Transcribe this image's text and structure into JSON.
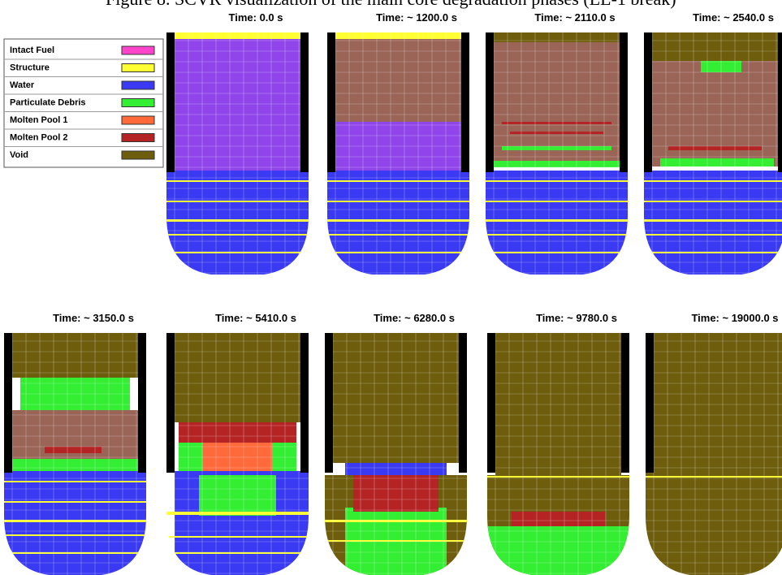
{
  "figure": {
    "caption": "Figure 8. SCVR visualization of the main core degradation phases (LL-1 break)",
    "legend": [
      {
        "label": "Intact Fuel",
        "color": "#ff44cc"
      },
      {
        "label": "Structure",
        "color": "#ffff33"
      },
      {
        "label": "Water",
        "color": "#3a3af2"
      },
      {
        "label": "Particulate Debris",
        "color": "#33ee33"
      },
      {
        "label": "Molten Pool 1",
        "color": "#ff6a3a"
      },
      {
        "label": "Molten Pool 2",
        "color": "#b52424"
      },
      {
        "label": "Void",
        "color": "#6e5d0c"
      }
    ],
    "panels": [
      {
        "time": "Time:  0.0 s"
      },
      {
        "time": "Time: ~ 1200.0 s"
      },
      {
        "time": "Time: ~ 2110.0 s"
      },
      {
        "time": "Time: ~ 2540.0 s"
      },
      {
        "time": "Time: ~ 3150.0 s"
      },
      {
        "time": "Time: ~ 5410.0 s"
      },
      {
        "time": "Time: ~ 6280.0 s"
      },
      {
        "time": "Time: ~ 9780.0 s"
      },
      {
        "time": "Time: ~ 19000.0 s"
      }
    ]
  }
}
